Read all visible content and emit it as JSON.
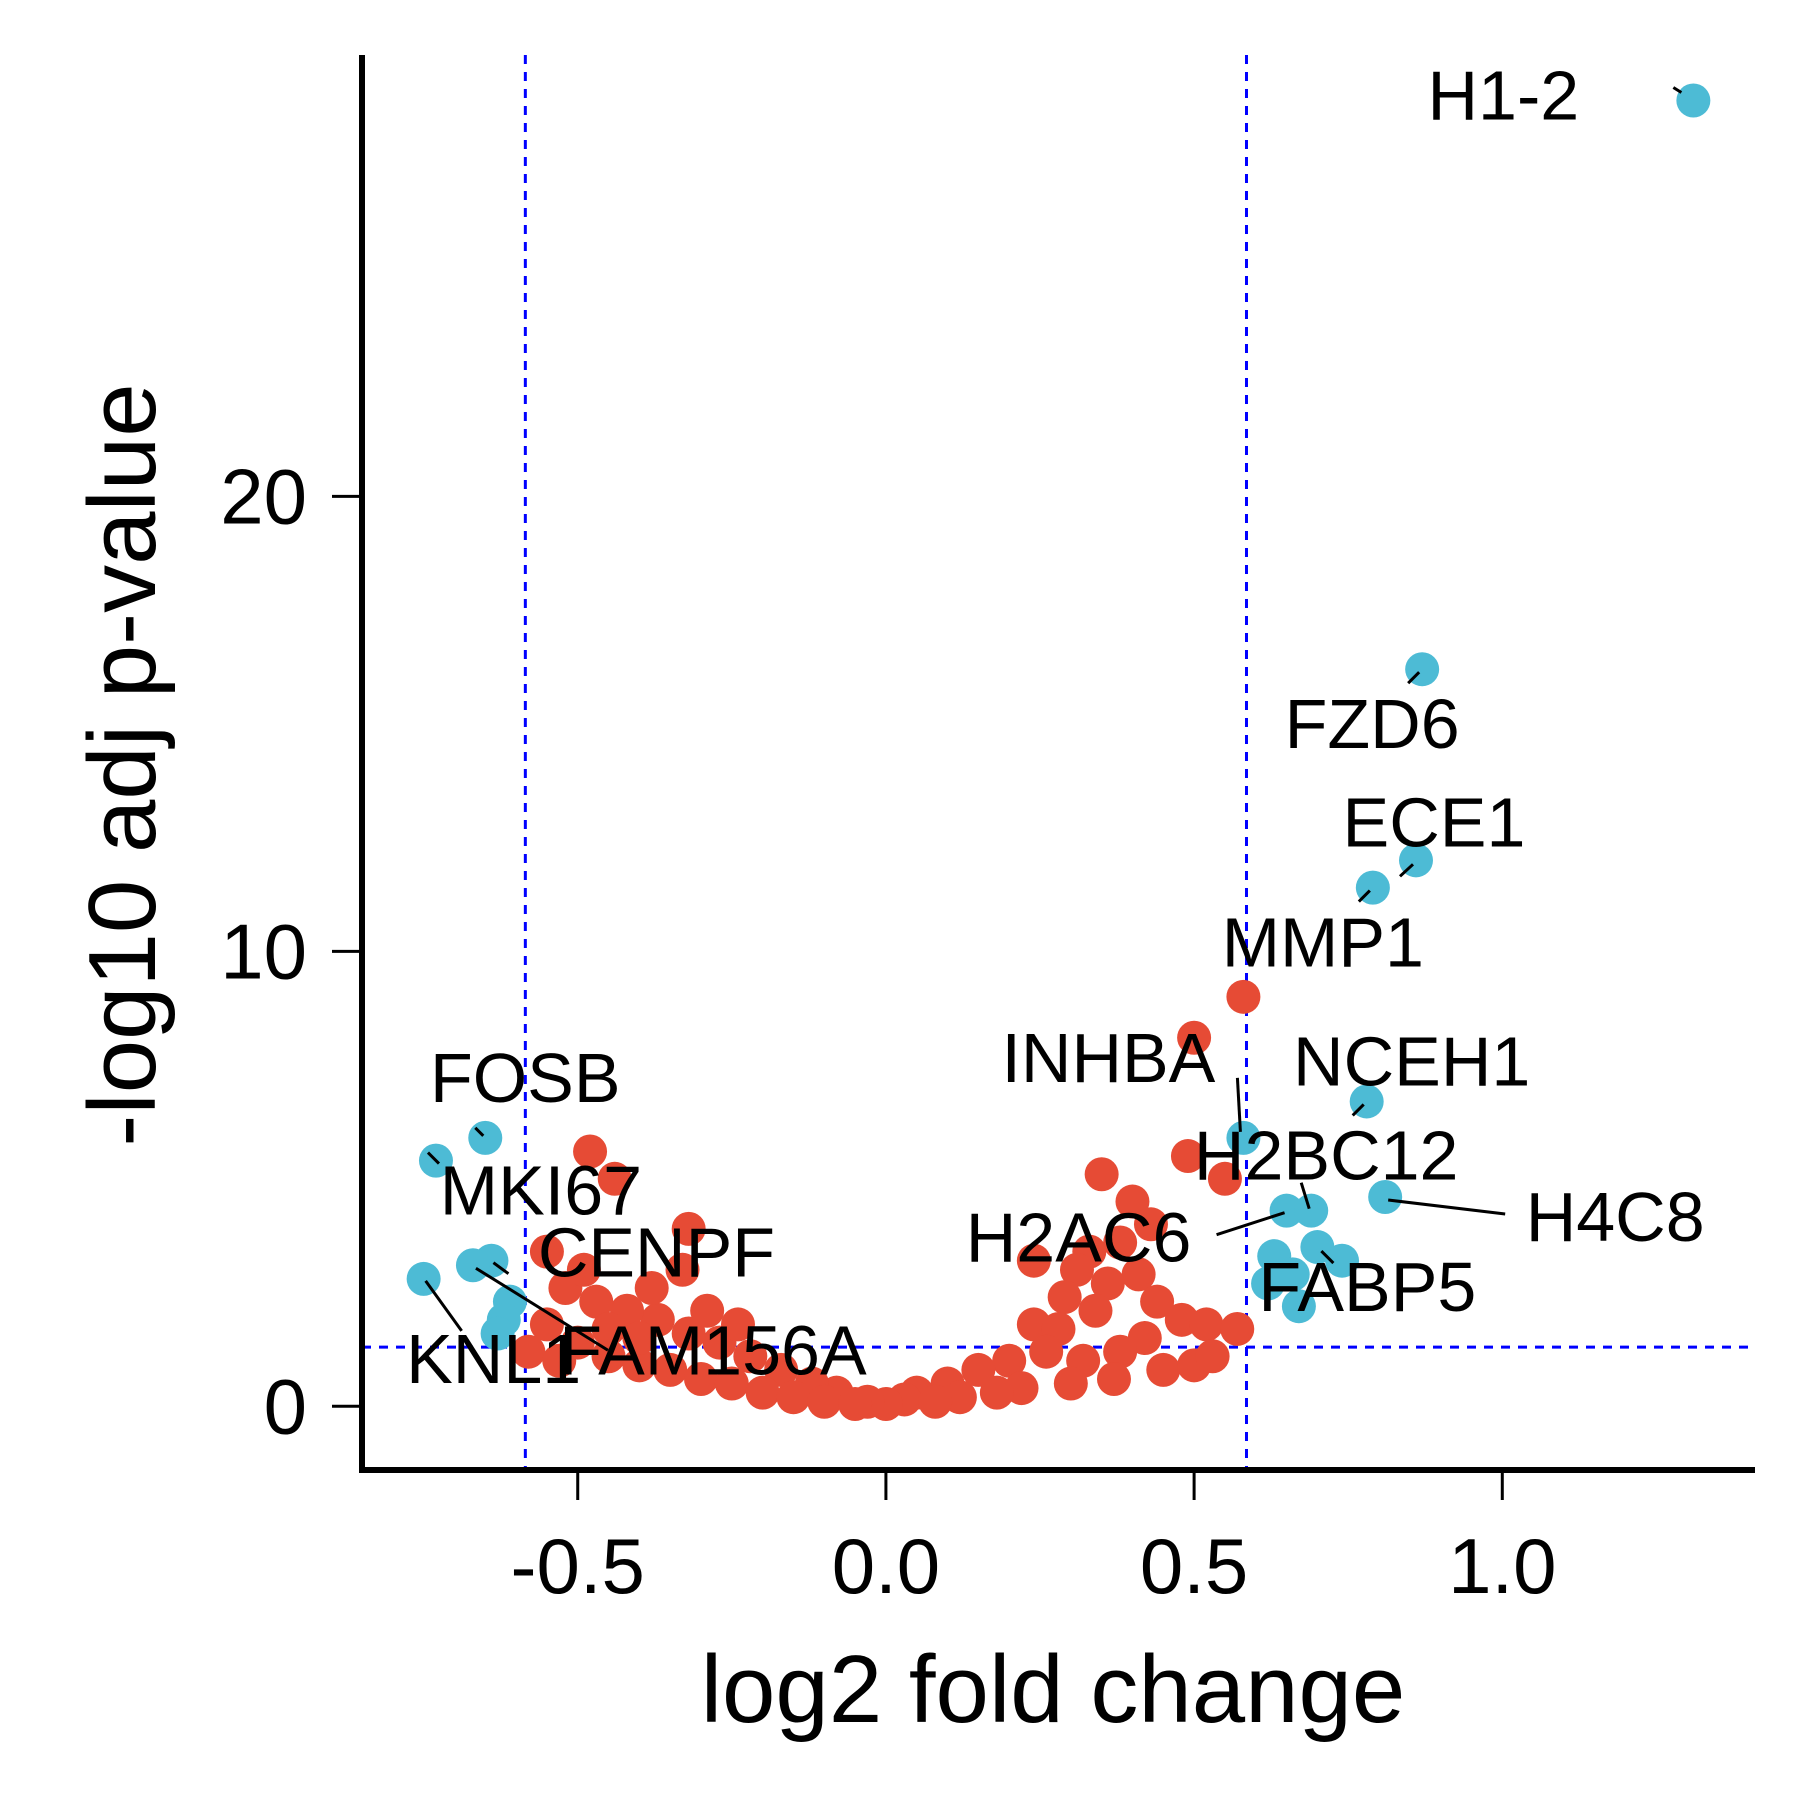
{
  "chart_data": {
    "type": "scatter",
    "title": "",
    "xlabel": "log2 fold change",
    "ylabel": "-log10 adj p-value",
    "xlim": [
      -0.85,
      1.41
    ],
    "ylim": [
      -1.4,
      29.7
    ],
    "x_ticks": [
      -0.5,
      0.0,
      0.5,
      1.0
    ],
    "x_tick_labels": [
      "-0.5",
      "0.0",
      "0.5",
      "1.0"
    ],
    "y_ticks": [
      0,
      10,
      20
    ],
    "y_tick_labels": [
      "0",
      "10",
      "20"
    ],
    "grid": false,
    "legend": "none",
    "thresholds": {
      "log2fc": [
        -0.585,
        0.585
      ],
      "neg_log10_padj": 1.3
    },
    "colors": {
      "not_significant": "#E64B35",
      "significant": "#4DBBD5",
      "threshold_line": "#0000FF"
    },
    "series": [
      {
        "group": "significant",
        "points": [
          [
            1.31,
            28.7
          ],
          [
            0.87,
            16.2
          ],
          [
            0.86,
            12.0
          ],
          [
            0.79,
            11.4
          ],
          [
            0.78,
            6.7
          ],
          [
            0.81,
            4.6
          ],
          [
            0.65,
            4.3
          ],
          [
            0.69,
            4.3
          ],
          [
            0.7,
            3.5
          ],
          [
            0.63,
            3.3
          ],
          [
            0.74,
            3.2
          ],
          [
            0.66,
            2.9
          ],
          [
            0.62,
            2.7
          ],
          [
            0.67,
            2.2
          ],
          [
            0.58,
            5.9
          ],
          [
            -0.65,
            5.9
          ],
          [
            -0.73,
            5.4
          ],
          [
            -0.64,
            3.2
          ],
          [
            -0.67,
            3.1
          ],
          [
            -0.75,
            2.8
          ],
          [
            -0.61,
            2.3
          ],
          [
            -0.62,
            1.9
          ],
          [
            -0.63,
            1.6
          ]
        ]
      },
      {
        "group": "not_significant",
        "points": [
          [
            0.58,
            9.0
          ],
          [
            0.5,
            8.1
          ],
          [
            0.49,
            5.5
          ],
          [
            0.55,
            5.0
          ],
          [
            0.35,
            5.1
          ],
          [
            0.4,
            4.5
          ],
          [
            0.43,
            4.0
          ],
          [
            0.38,
            3.6
          ],
          [
            0.33,
            3.4
          ],
          [
            0.24,
            3.2
          ],
          [
            0.31,
            3.0
          ],
          [
            0.41,
            2.9
          ],
          [
            0.36,
            2.7
          ],
          [
            0.29,
            2.4
          ],
          [
            0.44,
            2.3
          ],
          [
            0.34,
            2.1
          ],
          [
            0.24,
            1.8
          ],
          [
            0.28,
            1.7
          ],
          [
            0.48,
            1.9
          ],
          [
            0.52,
            1.8
          ],
          [
            0.57,
            1.7
          ],
          [
            0.42,
            1.5
          ],
          [
            0.38,
            1.2
          ],
          [
            0.32,
            1.0
          ],
          [
            0.26,
            1.2
          ],
          [
            0.2,
            1.0
          ],
          [
            0.15,
            0.8
          ],
          [
            0.1,
            0.5
          ],
          [
            0.05,
            0.3
          ],
          [
            0.03,
            0.15
          ],
          [
            0.0,
            0.05
          ],
          [
            -0.03,
            0.1
          ],
          [
            -0.08,
            0.3
          ],
          [
            -0.12,
            0.5
          ],
          [
            -0.17,
            0.8
          ],
          [
            -0.22,
            1.1
          ],
          [
            -0.27,
            1.4
          ],
          [
            -0.32,
            1.6
          ],
          [
            -0.37,
            1.9
          ],
          [
            -0.42,
            2.1
          ],
          [
            -0.47,
            2.3
          ],
          [
            -0.52,
            2.6
          ],
          [
            -0.55,
            1.8
          ],
          [
            -0.5,
            1.4
          ],
          [
            -0.45,
            1.1
          ],
          [
            -0.4,
            0.9
          ],
          [
            -0.35,
            0.8
          ],
          [
            -0.3,
            0.6
          ],
          [
            -0.25,
            0.5
          ],
          [
            -0.2,
            0.3
          ],
          [
            -0.15,
            0.2
          ],
          [
            -0.1,
            0.1
          ],
          [
            -0.48,
            5.6
          ],
          [
            -0.44,
            5.0
          ],
          [
            -0.32,
            3.9
          ],
          [
            -0.55,
            3.4
          ],
          [
            -0.49,
            3.0
          ],
          [
            -0.33,
            3.0
          ],
          [
            -0.38,
            2.6
          ],
          [
            -0.29,
            2.1
          ],
          [
            -0.24,
            1.8
          ],
          [
            -0.45,
            1.7
          ],
          [
            -0.4,
            1.5
          ],
          [
            -0.58,
            1.2
          ],
          [
            -0.53,
            1.0
          ],
          [
            0.45,
            0.8
          ],
          [
            0.5,
            0.9
          ],
          [
            0.53,
            1.1
          ],
          [
            0.37,
            0.6
          ],
          [
            0.3,
            0.5
          ],
          [
            0.22,
            0.4
          ],
          [
            0.18,
            0.3
          ],
          [
            0.12,
            0.2
          ],
          [
            0.08,
            0.1
          ],
          [
            -0.05,
            0.05
          ]
        ]
      }
    ],
    "annotations": [
      {
        "label": "H1-2",
        "x": 1.31,
        "y": 28.7
      },
      {
        "label": "FZD6",
        "x": 0.87,
        "y": 16.2
      },
      {
        "label": "ECE1",
        "x": 0.86,
        "y": 12.0
      },
      {
        "label": "MMP1",
        "x": 0.79,
        "y": 11.4
      },
      {
        "label": "NCEH1",
        "x": 0.78,
        "y": 6.7
      },
      {
        "label": "INHBA",
        "x": 0.58,
        "y": 5.9
      },
      {
        "label": "H2BC12",
        "x": 0.69,
        "y": 4.3
      },
      {
        "label": "H4C8",
        "x": 0.81,
        "y": 4.6
      },
      {
        "label": "H2AC6",
        "x": 0.65,
        "y": 4.3
      },
      {
        "label": "FABP5",
        "x": 0.7,
        "y": 3.5
      },
      {
        "label": "FOSB",
        "x": -0.65,
        "y": 5.9
      },
      {
        "label": "MKI67",
        "x": -0.73,
        "y": 5.4
      },
      {
        "label": "CENPF",
        "x": -0.64,
        "y": 3.2
      },
      {
        "label": "FAM156A",
        "x": -0.67,
        "y": 3.1
      },
      {
        "label": "KNL1",
        "x": -0.75,
        "y": 2.8
      }
    ]
  }
}
